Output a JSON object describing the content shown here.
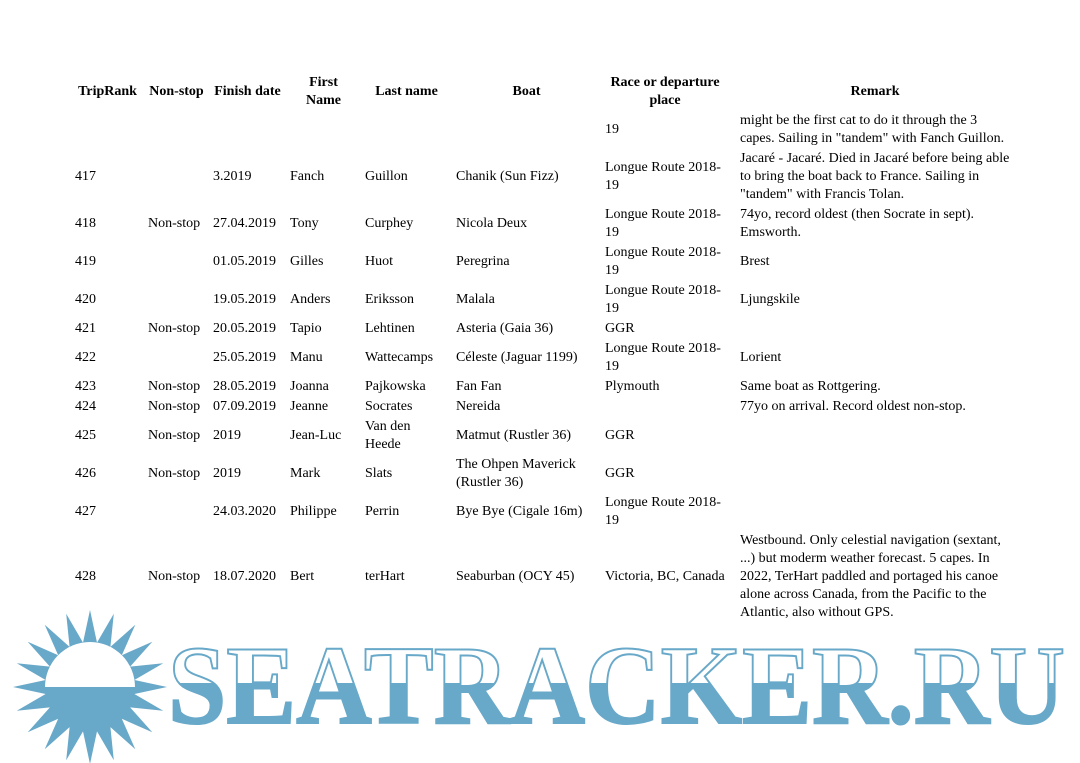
{
  "watermark": {
    "text": "SEATRACKER.RU",
    "color": "#68a8c9",
    "sun_icon": "sun-with-rays"
  },
  "table": {
    "keys": [
      "rank",
      "nonstop",
      "date",
      "first",
      "last",
      "boat",
      "race",
      "remark"
    ],
    "columns": [
      {
        "label": "TripRank"
      },
      {
        "label": "Non-stop"
      },
      {
        "label": "Finish date"
      },
      {
        "label": "First Name"
      },
      {
        "label": "Last name"
      },
      {
        "label": "Boat"
      },
      {
        "label": "Race or departure place"
      },
      {
        "label": "Remark"
      }
    ],
    "rows": [
      {
        "rank": "",
        "nonstop": "",
        "date": "",
        "first": "",
        "last": "",
        "boat": "",
        "race": "19",
        "remark": "might be the first cat to do it through the 3 capes. Sailing in \"tandem\" with Fanch Guillon."
      },
      {
        "rank": "417",
        "nonstop": "",
        "date": "3.2019",
        "first": "Fanch",
        "last": "Guillon",
        "boat": "Chanik (Sun Fizz)",
        "race": "Longue Route 2018-19",
        "remark": "Jacaré - Jacaré. Died in Jacaré before being able to bring the boat back to France. Sailing in \"tandem\" with Francis Tolan."
      },
      {
        "rank": "418",
        "nonstop": "Non-stop",
        "date": "27.04.2019",
        "first": "Tony",
        "last": "Curphey",
        "boat": "Nicola Deux",
        "race": "Longue Route 2018-19",
        "remark": "74yo, record oldest (then Socrate in sept). Emsworth."
      },
      {
        "rank": "419",
        "nonstop": "",
        "date": "01.05.2019",
        "first": "Gilles",
        "last": "Huot",
        "boat": "Peregrina",
        "race": "Longue Route 2018-19",
        "remark": "Brest"
      },
      {
        "rank": "420",
        "nonstop": "",
        "date": "19.05.2019",
        "first": "Anders",
        "last": "Eriksson",
        "boat": "Malala",
        "race": "Longue Route 2018-19",
        "remark": "Ljungskile"
      },
      {
        "rank": "421",
        "nonstop": "Non-stop",
        "date": "20.05.2019",
        "first": "Tapio",
        "last": "Lehtinen",
        "boat": "Asteria (Gaia 36)",
        "race": "GGR",
        "remark": ""
      },
      {
        "rank": "422",
        "nonstop": "",
        "date": "25.05.2019",
        "first": "Manu",
        "last": "Wattecamps",
        "boat": "Céleste (Jaguar 1199)",
        "race": "Longue Route 2018-19",
        "remark": "Lorient"
      },
      {
        "rank": "423",
        "nonstop": "Non-stop",
        "date": "28.05.2019",
        "first": "Joanna",
        "last": "Pajkowska",
        "boat": "Fan Fan",
        "race": "Plymouth",
        "remark": "Same boat as Rottgering."
      },
      {
        "rank": "424",
        "nonstop": "Non-stop",
        "date": "07.09.2019",
        "first": "Jeanne",
        "last": "Socrates",
        "boat": "Nereida",
        "race": "",
        "remark": "77yo on arrival. Record oldest non-stop."
      },
      {
        "rank": "425",
        "nonstop": "Non-stop",
        "date": "2019",
        "first": "Jean-Luc",
        "last": "Van den Heede",
        "boat": "Matmut (Rustler 36)",
        "race": "GGR",
        "remark": ""
      },
      {
        "rank": "426",
        "nonstop": "Non-stop",
        "date": "2019",
        "first": "Mark",
        "last": "Slats",
        "boat": "The Ohpen Maverick (Rustler 36)",
        "race": "GGR",
        "remark": ""
      },
      {
        "rank": "427",
        "nonstop": "",
        "date": "24.03.2020",
        "first": "Philippe",
        "last": "Perrin",
        "boat": "Bye Bye (Cigale 16m)",
        "race": "Longue Route 2018-19",
        "remark": ""
      },
      {
        "rank": "428",
        "nonstop": "Non-stop",
        "date": "18.07.2020",
        "first": "Bert",
        "last": "terHart",
        "boat": "Seaburban (OCY 45)",
        "race": "Victoria, BC, Canada",
        "remark": "Westbound. Only celestial navigation (sextant, ...) but moderm weather forecast. 5 capes. In 2022, TerHart paddled and portaged his canoe alone across Canada, from the Pacific to the Atlantic, also without GPS."
      }
    ]
  }
}
